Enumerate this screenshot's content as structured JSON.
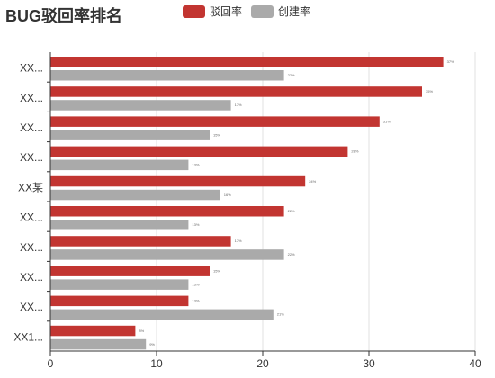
{
  "chart_data": {
    "type": "bar",
    "orientation": "horizontal",
    "title": "BUG驳回率排名",
    "categories": [
      "XX...",
      "XX...",
      "XX...",
      "XX...",
      "XX某",
      "XX...",
      "XX...",
      "XX...",
      "XX...",
      "XX1..."
    ],
    "series": [
      {
        "name": "驳回率",
        "color": "#c23531",
        "values": [
          37,
          35,
          31,
          28,
          24,
          22,
          17,
          15,
          13,
          8
        ],
        "value_labels": [
          "37%",
          "35%",
          "31%",
          "28%",
          "24%",
          "22%",
          "17%",
          "15%",
          "13%",
          "8%"
        ]
      },
      {
        "name": "创建率",
        "color": "#aaaaaa",
        "values": [
          22,
          17,
          15,
          13,
          16,
          13,
          22,
          13,
          21,
          9
        ],
        "value_labels": [
          "22%",
          "17%",
          "15%",
          "13%",
          "16%",
          "13%",
          "22%",
          "13%",
          "21%",
          "9%"
        ]
      }
    ],
    "xlim": [
      0,
      40
    ],
    "x_ticks": [
      0,
      10,
      20,
      30,
      40
    ],
    "grid": true,
    "legend_position": "top"
  }
}
